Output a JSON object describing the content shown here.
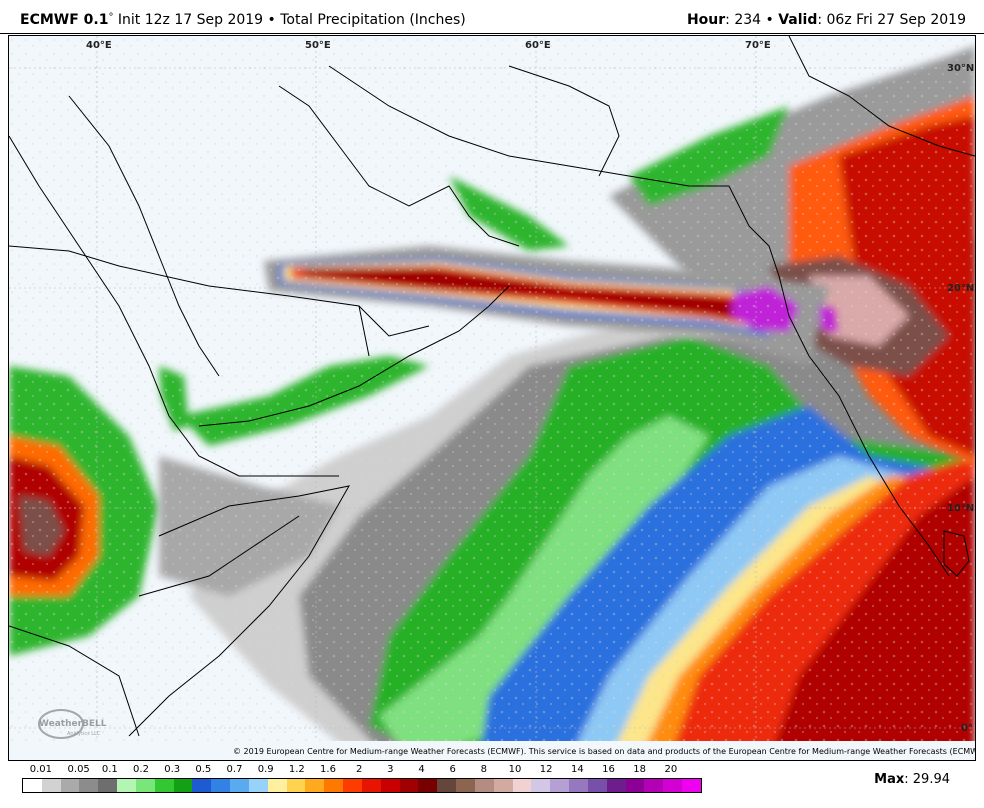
{
  "header": {
    "model": "ECMWF 0.1",
    "deg": "°",
    "init": " Init 12z 17 Sep 2019 • Total Precipitation (Inches)",
    "hour_label": "Hour",
    "hour_value": ": 234 • ",
    "valid_label": "Valid",
    "valid_value": ": 06z Fri 27 Sep 2019"
  },
  "map": {
    "lon_labels": [
      "40°E",
      "50°E",
      "60°E",
      "70°E"
    ],
    "lat_labels": [
      "30°N",
      "20°N",
      "10°N",
      "0°"
    ],
    "copyright": "© 2019 European Centre for Medium-range Weather Forecasts (ECMWF). This service is based on data and products of the European Centre for Medium-range Weather Forecasts (ECMWF).",
    "logo_text": "WeatherBELL",
    "logo_sub": "Analytics LLC",
    "colors": {
      "ocean": "#f2f7fc",
      "light_gray": "#c8c8c8",
      "mid_gray": "#9a9a9a",
      "dark_gray": "#787878",
      "green": "#2db52d",
      "light_green": "#8ee88e",
      "blue": "#2a6fde",
      "light_blue": "#8ec8f5",
      "yellow": "#fde58a",
      "orange": "#ff8c10",
      "red": "#e62010",
      "dark_red": "#a80000",
      "brown": "#7c5048",
      "pink": "#d9a8a8",
      "purple": "#c020d8"
    }
  },
  "legend": {
    "labels": [
      "0.01",
      "0.05",
      "0.1",
      "0.2",
      "0.3",
      "0.5",
      "0.7",
      "0.9",
      "1.2",
      "1.6",
      "2",
      "3",
      "4",
      "6",
      "8",
      "10",
      "12",
      "14",
      "16",
      "18",
      "20"
    ],
    "colors": [
      "#ffffff",
      "#d2d2d2",
      "#aaaaaa",
      "#8c8c8c",
      "#6e6e6e",
      "#b4f5b4",
      "#78e678",
      "#32c832",
      "#14a014",
      "#1e5ad2",
      "#3282e6",
      "#5aaaf0",
      "#96d2fa",
      "#fff0a0",
      "#ffd250",
      "#ffaa1e",
      "#ff7800",
      "#ff3c00",
      "#e61400",
      "#c80000",
      "#a00000",
      "#780000",
      "#64463c",
      "#8c6450",
      "#b48c82",
      "#d2aaa0",
      "#f0d2d2",
      "#d2c8e6",
      "#b4a0d2",
      "#9678be",
      "#7850aa",
      "#6e1e8c",
      "#8c0096",
      "#b400b4",
      "#d200d2",
      "#f000f0"
    ]
  },
  "max": {
    "label": "Max",
    "value": ": 29.94"
  }
}
